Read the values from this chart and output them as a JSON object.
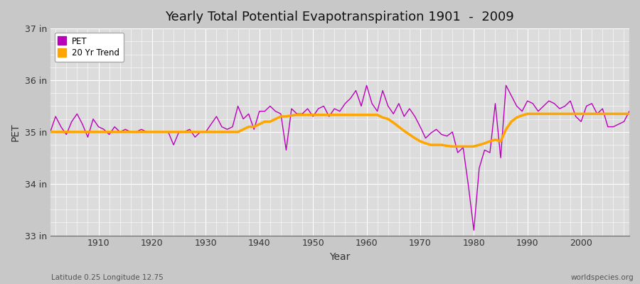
{
  "title": "Yearly Total Potential Evapotranspiration 1901  -  2009",
  "xlabel": "Year",
  "ylabel": "PET",
  "subtitle_left": "Latitude 0.25 Longitude 12.75",
  "subtitle_right": "worldspecies.org",
  "pet_color": "#bb00bb",
  "trend_color": "#FFA500",
  "bg_color": "#c8c8c8",
  "plot_bg_color": "#dcdcdc",
  "ylim": [
    33.0,
    37.0
  ],
  "xlim": [
    1901,
    2009
  ],
  "yticks": [
    33,
    34,
    35,
    36,
    37
  ],
  "xticks": [
    1910,
    1920,
    1930,
    1940,
    1950,
    1960,
    1970,
    1980,
    1990,
    2000
  ],
  "years": [
    1901,
    1902,
    1903,
    1904,
    1905,
    1906,
    1907,
    1908,
    1909,
    1910,
    1911,
    1912,
    1913,
    1914,
    1915,
    1916,
    1917,
    1918,
    1919,
    1920,
    1921,
    1922,
    1923,
    1924,
    1925,
    1926,
    1927,
    1928,
    1929,
    1930,
    1931,
    1932,
    1933,
    1934,
    1935,
    1936,
    1937,
    1938,
    1939,
    1940,
    1941,
    1942,
    1943,
    1944,
    1945,
    1946,
    1947,
    1948,
    1949,
    1950,
    1951,
    1952,
    1953,
    1954,
    1955,
    1956,
    1957,
    1958,
    1959,
    1960,
    1961,
    1962,
    1963,
    1964,
    1965,
    1966,
    1967,
    1968,
    1969,
    1970,
    1971,
    1972,
    1973,
    1974,
    1975,
    1976,
    1977,
    1978,
    1979,
    1980,
    1981,
    1982,
    1983,
    1984,
    1985,
    1986,
    1987,
    1988,
    1989,
    1990,
    1991,
    1992,
    1993,
    1994,
    1995,
    1996,
    1997,
    1998,
    1999,
    2000,
    2001,
    2002,
    2003,
    2004,
    2005,
    2006,
    2007,
    2008,
    2009
  ],
  "pet": [
    35.0,
    35.3,
    35.1,
    34.95,
    35.2,
    35.35,
    35.15,
    34.9,
    35.25,
    35.1,
    35.05,
    34.95,
    35.1,
    35.0,
    35.05,
    35.0,
    35.0,
    35.05,
    35.0,
    35.0,
    35.0,
    35.0,
    35.0,
    34.75,
    35.0,
    35.0,
    35.05,
    34.9,
    35.0,
    35.0,
    35.15,
    35.3,
    35.1,
    35.05,
    35.1,
    35.5,
    35.25,
    35.35,
    35.05,
    35.4,
    35.4,
    35.5,
    35.4,
    35.35,
    34.65,
    35.45,
    35.35,
    35.35,
    35.45,
    35.3,
    35.45,
    35.5,
    35.3,
    35.45,
    35.4,
    35.55,
    35.65,
    35.8,
    35.5,
    35.9,
    35.55,
    35.4,
    35.8,
    35.5,
    35.35,
    35.55,
    35.3,
    35.45,
    35.3,
    35.1,
    34.88,
    34.98,
    35.05,
    34.95,
    34.92,
    35.0,
    34.6,
    34.7,
    33.95,
    33.1,
    34.3,
    34.65,
    34.6,
    35.55,
    34.5,
    35.9,
    35.7,
    35.5,
    35.4,
    35.6,
    35.55,
    35.4,
    35.5,
    35.6,
    35.55,
    35.45,
    35.5,
    35.6,
    35.3,
    35.2,
    35.5,
    35.55,
    35.35,
    35.45,
    35.1,
    35.1,
    35.15,
    35.2,
    35.4
  ],
  "trend": [
    35.0,
    35.0,
    35.0,
    35.0,
    35.0,
    35.0,
    35.0,
    35.0,
    35.0,
    35.0,
    35.0,
    35.0,
    35.0,
    35.0,
    35.0,
    35.0,
    35.0,
    35.0,
    35.0,
    35.0,
    35.0,
    35.0,
    35.0,
    35.0,
    35.0,
    35.0,
    35.0,
    35.0,
    35.0,
    35.0,
    35.0,
    35.0,
    35.0,
    35.0,
    35.0,
    35.0,
    35.05,
    35.1,
    35.1,
    35.15,
    35.2,
    35.2,
    35.25,
    35.3,
    35.3,
    35.32,
    35.33,
    35.33,
    35.33,
    35.33,
    35.33,
    35.33,
    35.33,
    35.33,
    35.33,
    35.33,
    35.33,
    35.33,
    35.33,
    35.33,
    35.33,
    35.33,
    35.28,
    35.25,
    35.18,
    35.1,
    35.02,
    34.95,
    34.88,
    34.82,
    34.78,
    34.75,
    34.75,
    34.75,
    34.73,
    34.72,
    34.72,
    34.72,
    34.72,
    34.72,
    34.75,
    34.78,
    34.82,
    34.85,
    34.82,
    35.05,
    35.2,
    35.28,
    35.32,
    35.35,
    35.35,
    35.35,
    35.35,
    35.35,
    35.35,
    35.35,
    35.35,
    35.35,
    35.35,
    35.35,
    35.35,
    35.35,
    35.35,
    35.35,
    35.35,
    35.35,
    35.35,
    35.35,
    35.35
  ]
}
